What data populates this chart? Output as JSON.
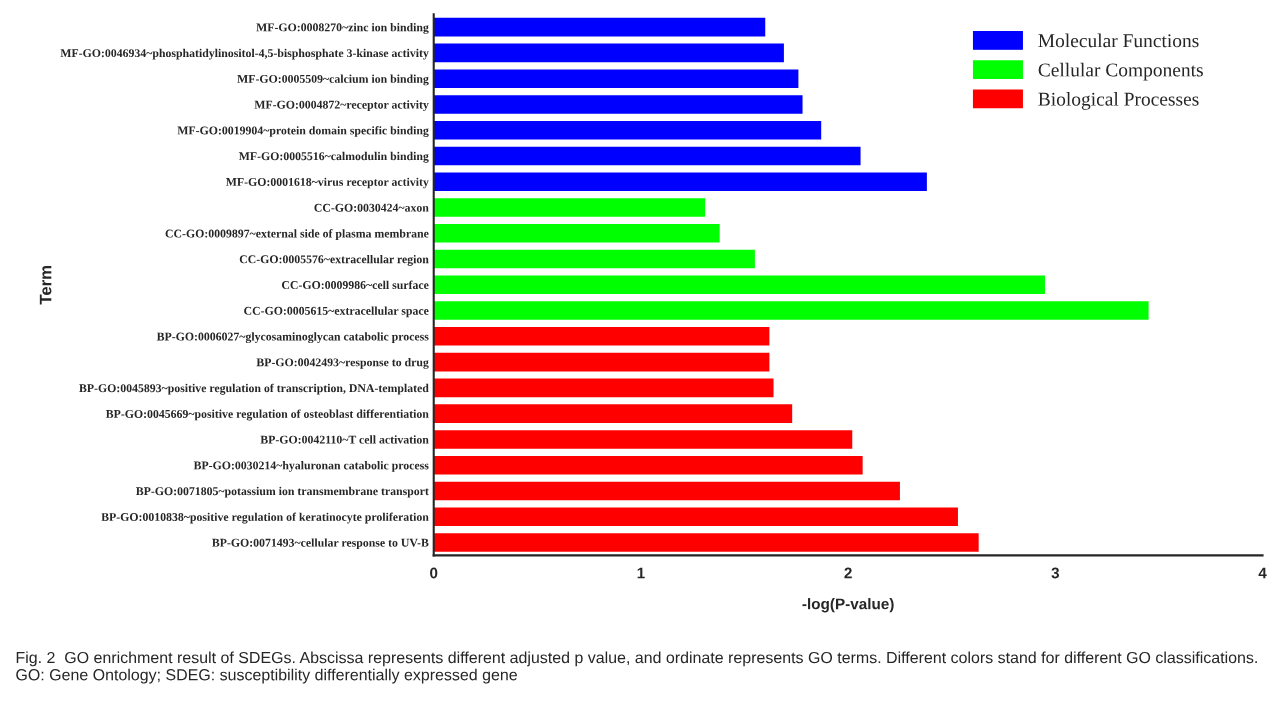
{
  "chart_data": {
    "type": "bar",
    "orientation": "horizontal",
    "xlabel": "-log(P-value)",
    "ylabel": "Term",
    "categories": [
      "MF-GO:0008270~zinc ion binding",
      "MF-GO:0046934~phosphatidylinositol-4,5-bisphosphate 3-kinase activity",
      "MF-GO:0005509~calcium ion binding",
      "MF-GO:0004872~receptor activity",
      "MF-GO:0019904~protein domain specific binding",
      "MF-GO:0005516~calmodulin binding",
      "MF-GO:0001618~virus receptor activity",
      "CC-GO:0030424~axon",
      "CC-GO:0009897~external side of plasma membrane",
      "CC-GO:0005576~extracellular region",
      "CC-GO:0009986~cell surface",
      "CC-GO:0005615~extracellular space",
      "BP-GO:0006027~glycosaminoglycan catabolic process",
      "BP-GO:0042493~response to drug",
      "BP-GO:0045893~positive regulation of transcription, DNA-templated",
      "BP-GO:0045669~positive regulation of osteoblast differentiation",
      "BP-GO:0042110~T cell activation",
      "BP-GO:0030214~hyaluronan catabolic process",
      "BP-GO:0071805~potassium ion transmembrane transport",
      "BP-GO:0010838~positive regulation of keratinocyte proliferation",
      "BP-GO:0071493~cellular response to UV-B"
    ],
    "series": [
      {
        "name": "Molecular Functions",
        "color": "#0000ff",
        "values": [
          1.6,
          1.69,
          1.76,
          1.78,
          1.87,
          2.06,
          2.38,
          null,
          null,
          null,
          null,
          null,
          null,
          null,
          null,
          null,
          null,
          null,
          null,
          null,
          null
        ]
      },
      {
        "name": "Cellular Components",
        "color": "#00ff00",
        "values": [
          null,
          null,
          null,
          null,
          null,
          null,
          null,
          1.31,
          1.38,
          1.55,
          2.95,
          3.45,
          null,
          null,
          null,
          null,
          null,
          null,
          null,
          null,
          null
        ]
      },
      {
        "name": "Biological Processes",
        "color": "#ff0000",
        "values": [
          null,
          null,
          null,
          null,
          null,
          null,
          null,
          null,
          null,
          null,
          null,
          null,
          1.62,
          1.62,
          1.64,
          1.73,
          2.02,
          2.07,
          2.25,
          2.53,
          2.63
        ]
      }
    ],
    "xlim": [
      0,
      4
    ],
    "xticks": [
      0,
      1,
      2,
      3,
      4
    ],
    "grid": false,
    "legend": "top right",
    "annotations": [
      "Fig. 2  GO enrichment result of SDEGs. Abscissa represents different adjusted p value, and ordinate represents GO terms. Different colors stand for different GO classifications. GO: Gene Ontology; SDEG: susceptibility differentially expressed gene"
    ]
  }
}
